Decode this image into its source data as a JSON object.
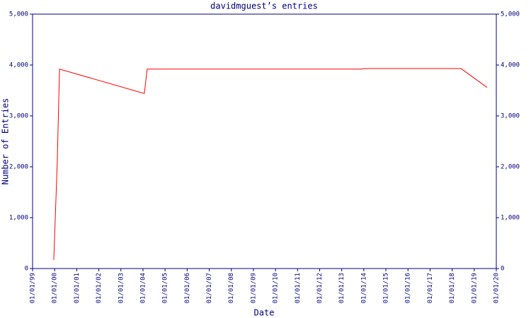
{
  "chart_data": {
    "type": "line",
    "title": "davidmguest’s entries",
    "x_label": "Date",
    "y_label": "Number of Entries",
    "x": [
      1999.96,
      2000.12,
      2000.22,
      2004.06,
      2004.19,
      2013.94,
      2014.0,
      2018.4,
      2019.58
    ],
    "values": [
      170,
      2110,
      3920,
      3440,
      3920,
      3920,
      3930,
      3930,
      3560
    ],
    "color": "#ff0000",
    "xlim": [
      1999,
      2020
    ],
    "xticks": [
      {
        "value": 1999,
        "label": "01/01/99"
      },
      {
        "value": 2000,
        "label": "01/01/00"
      },
      {
        "value": 2001,
        "label": "01/01/01"
      },
      {
        "value": 2002,
        "label": "01/01/02"
      },
      {
        "value": 2003,
        "label": "01/01/03"
      },
      {
        "value": 2004,
        "label": "01/01/04"
      },
      {
        "value": 2005,
        "label": "01/01/05"
      },
      {
        "value": 2006,
        "label": "01/01/06"
      },
      {
        "value": 2007,
        "label": "01/01/07"
      },
      {
        "value": 2008,
        "label": "01/01/08"
      },
      {
        "value": 2009,
        "label": "01/01/09"
      },
      {
        "value": 2010,
        "label": "01/01/10"
      },
      {
        "value": 2011,
        "label": "01/01/11"
      },
      {
        "value": 2012,
        "label": "01/01/12"
      },
      {
        "value": 2013,
        "label": "01/01/13"
      },
      {
        "value": 2014,
        "label": "01/01/14"
      },
      {
        "value": 2015,
        "label": "01/01/15"
      },
      {
        "value": 2016,
        "label": "01/01/16"
      },
      {
        "value": 2017,
        "label": "01/01/17"
      },
      {
        "value": 2018,
        "label": "01/01/18"
      },
      {
        "value": 2019,
        "label": "01/01/19"
      },
      {
        "value": 2020,
        "label": "01/01/20"
      }
    ],
    "ylim": [
      0,
      5000
    ],
    "yticks": [
      0,
      {
        "value": 1000,
        "label": "1,000"
      },
      {
        "value": 2000,
        "label": "2,000"
      },
      {
        "value": 3000,
        "label": "3,000"
      },
      {
        "value": 4000,
        "label": "4,000"
      },
      {
        "value": 5000,
        "label": "5,000"
      }
    ],
    "y2lim": [
      0,
      5000
    ],
    "y2ticks": [
      0,
      {
        "value": 1000,
        "label": "1,000"
      },
      {
        "value": 2000,
        "label": "2,000"
      },
      {
        "value": 3000,
        "label": "3,000"
      },
      {
        "value": 4000,
        "label": "4,000"
      },
      {
        "value": 5000,
        "label": "5,000"
      }
    ]
  }
}
